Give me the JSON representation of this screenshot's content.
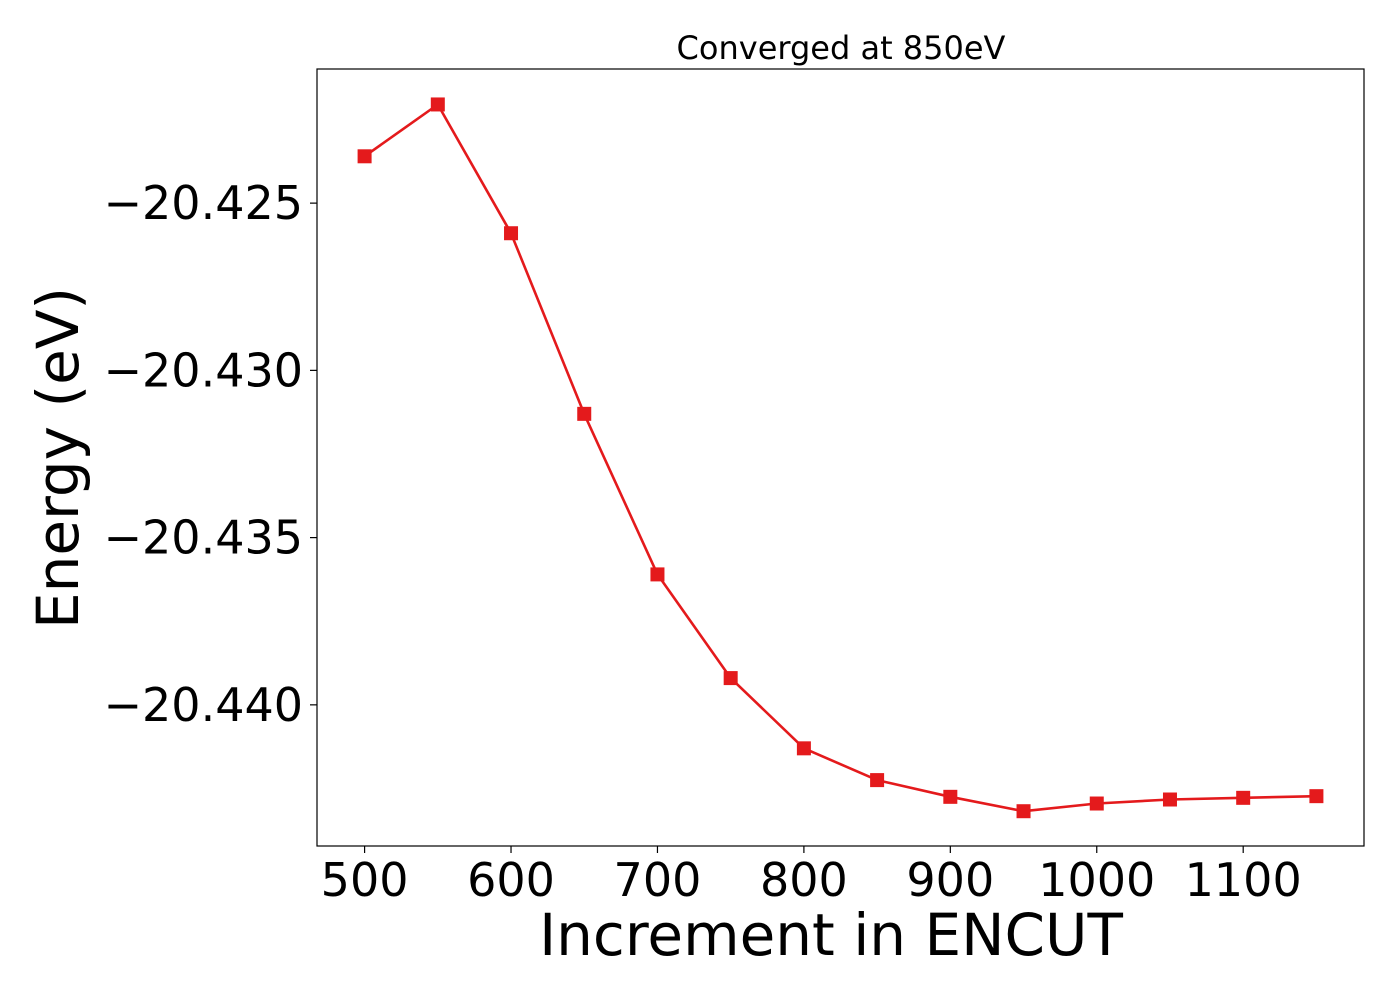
{
  "chart_data": {
    "type": "line",
    "title": "Converged at 850eV",
    "xlabel": "Increment in ENCUT",
    "ylabel": "Energy (eV)",
    "x": [
      500,
      550,
      600,
      650,
      700,
      750,
      800,
      850,
      900,
      950,
      1000,
      1050,
      1100,
      1150
    ],
    "series": [
      {
        "name": "",
        "color": "#e41a1c",
        "marker": "square",
        "values": [
          -20.4236,
          -20.42205,
          -20.4259,
          -20.4313,
          -20.4361,
          -20.4392,
          -20.4413,
          -20.44225,
          -20.44275,
          -20.44318,
          -20.44295,
          -20.44283,
          -20.44278,
          -20.44273
        ]
      }
    ],
    "xlim": [
      467.5,
      1182.5
    ],
    "ylim": [
      -20.44422,
      -20.42099
    ],
    "xticks": [
      500,
      600,
      700,
      800,
      900,
      1000,
      1100
    ],
    "xtick_labels": [
      "500",
      "600",
      "700",
      "800",
      "900",
      "1000",
      "1100"
    ],
    "yticks": [
      -20.425,
      -20.43,
      -20.435,
      -20.44
    ],
    "ytick_labels": [
      "−20.425",
      "−20.430",
      "−20.435",
      "−20.440"
    ],
    "grid": false,
    "legend": "none"
  }
}
